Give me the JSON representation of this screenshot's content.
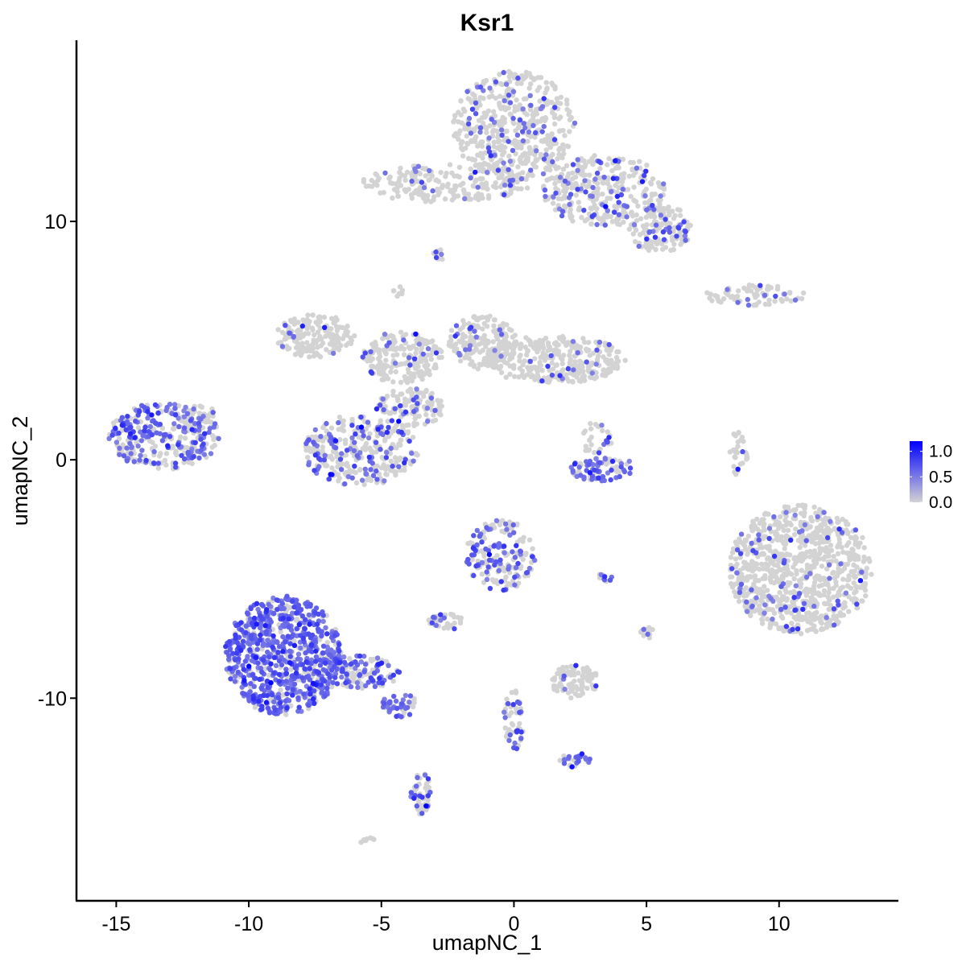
{
  "chart_data": {
    "type": "scatter",
    "title": "Ksr1",
    "xlabel": "umapNC_1",
    "ylabel": "umapNC_2",
    "xlim": [
      -16.5,
      14.5
    ],
    "ylim": [
      -18.5,
      17.6
    ],
    "x_ticks": [
      -15,
      -10,
      -5,
      0,
      5,
      10
    ],
    "x_tick_labels": [
      "-15",
      "-10",
      "-5",
      "0",
      "5",
      "10"
    ],
    "y_ticks": [
      -10,
      0,
      10
    ],
    "y_tick_labels": [
      "-10",
      "0",
      "10"
    ],
    "grid": false,
    "legend": {
      "placement": "right",
      "type": "colorbar",
      "ticks": [
        0.0,
        0.5,
        1.0
      ],
      "tick_labels": [
        "0.0",
        "0.5",
        "1.0"
      ],
      "range": [
        0.0,
        1.2
      ]
    },
    "colors": {
      "low": "#d3d3d3",
      "high": "#0000ff",
      "axis": "#000000"
    },
    "point_size": 3.2,
    "clusters": [
      {
        "cx": 0.0,
        "cy": 14.0,
        "rx": 2.3,
        "ry": 2.3,
        "n": 500,
        "expr_frac": 0.12
      },
      {
        "cx": 3.4,
        "cy": 11.3,
        "rx": 2.3,
        "ry": 1.5,
        "n": 330,
        "expr_frac": 0.18
      },
      {
        "cx": 5.5,
        "cy": 9.7,
        "rx": 1.2,
        "ry": 1.0,
        "n": 140,
        "expr_frac": 0.18
      },
      {
        "cx": -2.5,
        "cy": 11.6,
        "rx": 3.3,
        "ry": 0.8,
        "n": 220,
        "expr_frac": 0.06
      },
      {
        "cx": -2.8,
        "cy": 8.6,
        "rx": 0.3,
        "ry": 0.25,
        "n": 12,
        "expr_frac": 0.5
      },
      {
        "cx": 9.0,
        "cy": 6.9,
        "rx": 2.0,
        "ry": 0.45,
        "n": 70,
        "expr_frac": 0.15
      },
      {
        "cx": -7.5,
        "cy": 5.2,
        "rx": 1.5,
        "ry": 0.9,
        "n": 160,
        "expr_frac": 0.06
      },
      {
        "cx": -4.2,
        "cy": 4.3,
        "rx": 1.5,
        "ry": 1.1,
        "n": 200,
        "expr_frac": 0.08
      },
      {
        "cx": -1.2,
        "cy": 4.9,
        "rx": 1.3,
        "ry": 1.2,
        "n": 180,
        "expr_frac": 0.1
      },
      {
        "cx": 1.5,
        "cy": 4.2,
        "rx": 2.7,
        "ry": 1.0,
        "n": 330,
        "expr_frac": 0.06
      },
      {
        "cx": -3.9,
        "cy": 2.2,
        "rx": 1.3,
        "ry": 0.8,
        "n": 120,
        "expr_frac": 0.15
      },
      {
        "cx": -5.8,
        "cy": 0.4,
        "rx": 2.2,
        "ry": 1.5,
        "n": 320,
        "expr_frac": 0.28
      },
      {
        "cx": -13.2,
        "cy": 1.0,
        "rx": 2.1,
        "ry": 1.4,
        "n": 300,
        "expr_frac": 0.5
      },
      {
        "cx": -11.9,
        "cy": 1.7,
        "rx": 0.7,
        "ry": 0.7,
        "n": 40,
        "expr_frac": 0.3
      },
      {
        "cx": 3.4,
        "cy": -0.4,
        "rx": 1.3,
        "ry": 0.5,
        "n": 80,
        "expr_frac": 0.7
      },
      {
        "cx": 3.1,
        "cy": 0.9,
        "rx": 0.6,
        "ry": 0.7,
        "n": 30,
        "expr_frac": 0.2
      },
      {
        "cx": 8.5,
        "cy": 0.3,
        "rx": 0.35,
        "ry": 1.0,
        "n": 30,
        "expr_frac": 0.03
      },
      {
        "cx": 10.8,
        "cy": -4.6,
        "rx": 2.7,
        "ry": 2.7,
        "n": 900,
        "expr_frac": 0.08
      },
      {
        "cx": -0.5,
        "cy": -4.0,
        "rx": 1.3,
        "ry": 1.5,
        "n": 180,
        "expr_frac": 0.4
      },
      {
        "cx": -8.7,
        "cy": -8.2,
        "rx": 2.2,
        "ry": 2.5,
        "n": 800,
        "expr_frac": 0.75
      },
      {
        "cx": -5.8,
        "cy": -8.9,
        "rx": 1.5,
        "ry": 0.7,
        "n": 130,
        "expr_frac": 0.5
      },
      {
        "cx": -4.3,
        "cy": -10.3,
        "rx": 0.7,
        "ry": 0.5,
        "n": 50,
        "expr_frac": 0.6
      },
      {
        "cx": -3.5,
        "cy": -14.0,
        "rx": 0.4,
        "ry": 0.9,
        "n": 50,
        "expr_frac": 0.4
      },
      {
        "cx": -2.6,
        "cy": -6.8,
        "rx": 0.7,
        "ry": 0.35,
        "n": 40,
        "expr_frac": 0.15
      },
      {
        "cx": 2.3,
        "cy": -9.3,
        "rx": 0.9,
        "ry": 0.7,
        "n": 90,
        "expr_frac": 0.1
      },
      {
        "cx": 0.0,
        "cy": -10.9,
        "rx": 0.4,
        "ry": 1.3,
        "n": 50,
        "expr_frac": 0.3
      },
      {
        "cx": 2.3,
        "cy": -12.6,
        "rx": 0.6,
        "ry": 0.3,
        "n": 30,
        "expr_frac": 0.4
      },
      {
        "cx": 5.0,
        "cy": -7.3,
        "rx": 0.3,
        "ry": 0.3,
        "n": 15,
        "expr_frac": 0.2
      },
      {
        "cx": 3.5,
        "cy": -4.9,
        "rx": 0.3,
        "ry": 0.2,
        "n": 10,
        "expr_frac": 0.6
      },
      {
        "cx": -5.5,
        "cy": -16.0,
        "rx": 0.3,
        "ry": 0.15,
        "n": 8,
        "expr_frac": 0.0
      },
      {
        "cx": -4.4,
        "cy": 7.1,
        "rx": 0.25,
        "ry": 0.25,
        "n": 8,
        "expr_frac": 0.0
      }
    ]
  }
}
